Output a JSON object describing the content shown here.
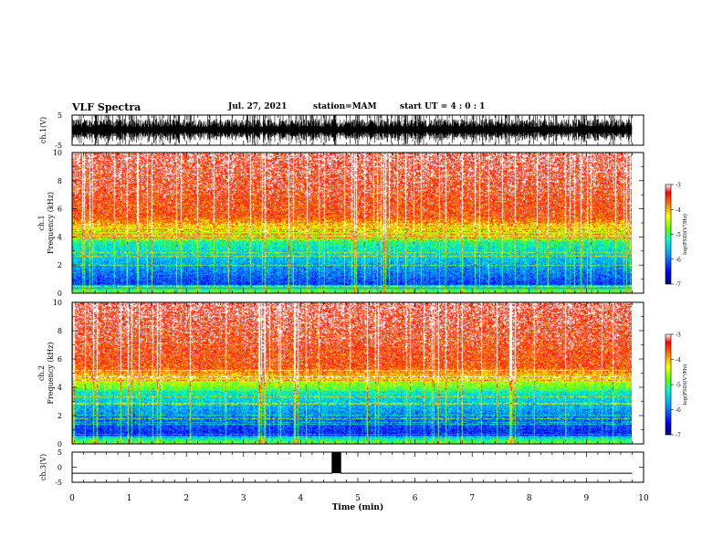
{
  "header": {
    "title": "VLF Spectra",
    "date": "Jul. 27, 2021",
    "station": "station=MAM",
    "start": "start  UT =  4 : 0  : 1"
  },
  "colors": {
    "colormap": [
      "#000080",
      "#0000ff",
      "#00a0ff",
      "#00ffc0",
      "#60ff00",
      "#ffff00",
      "#ff8000",
      "#ff0000",
      "#ffffff"
    ]
  },
  "chart_data": [
    {
      "type": "line",
      "panel": "ch1-waveform",
      "ylabel": "ch.1(V)",
      "ylim": [
        -5,
        5
      ],
      "yticks": [
        "5",
        "-5"
      ],
      "xlim": [
        0,
        10
      ],
      "x": [
        0,
        9.8
      ],
      "series": [
        {
          "values": [
            0,
            0
          ]
        }
      ]
    },
    {
      "type": "heatmap",
      "panel": "ch1-spectrogram",
      "ylabel_top": "ch.1",
      "ylabel": "Frequency (kHz)",
      "ylim": [
        0,
        10
      ],
      "yticks": [
        "0",
        "2",
        "4",
        "6",
        "8",
        "10"
      ],
      "xlim": [
        0,
        10
      ],
      "data_xmax": 9.8,
      "colorbar": {
        "ticks": [
          "-3",
          "-4",
          "-5",
          "-6",
          "-7"
        ],
        "label": "log(PSD)(V²/Hz)"
      }
    },
    {
      "type": "heatmap",
      "panel": "ch2-spectrogram",
      "ylabel_top": "ch.2",
      "ylabel": "Frequency (kHz)",
      "ylim": [
        0,
        10
      ],
      "yticks": [
        "0",
        "2",
        "4",
        "6",
        "8",
        "10"
      ],
      "xlim": [
        0,
        10
      ],
      "data_xmax": 9.8,
      "colorbar": {
        "ticks": [
          "-3",
          "-4",
          "-5",
          "-6",
          "-7"
        ],
        "label": "log(PSD)(V²/Hz)"
      }
    },
    {
      "type": "line",
      "panel": "ch3-waveform",
      "ylabel": "ch.3(V)",
      "ylim": [
        -5,
        5
      ],
      "yticks": [
        "5",
        "0",
        "-5"
      ],
      "xlim": [
        0,
        10
      ],
      "x": [
        0,
        4.55,
        4.55,
        4.7,
        4.7,
        9.8
      ],
      "series": [
        {
          "values": [
            -2,
            -2,
            5,
            5,
            -2,
            -2
          ]
        }
      ],
      "xticks": [
        "0",
        "1",
        "2",
        "3",
        "4",
        "5",
        "6",
        "7",
        "8",
        "9",
        "10"
      ],
      "xlabel": "Time (min)"
    }
  ]
}
